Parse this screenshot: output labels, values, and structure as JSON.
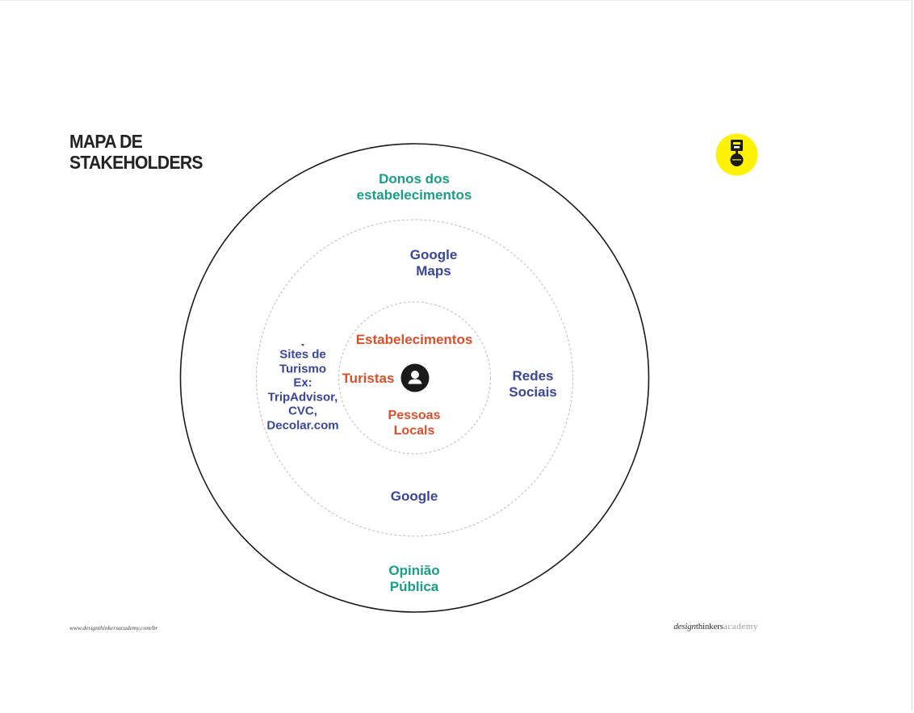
{
  "title": {
    "line1": "MAPA DE",
    "line2": "STAKEHOLDERS"
  },
  "colors": {
    "outer_ring_text": "#1a9e87",
    "middle_ring_text": "#3a4699",
    "inner_ring_text": "#d9502d",
    "logo_yellow": "#fff200"
  },
  "rings": {
    "outer": {
      "items": [
        {
          "lines": [
            "Donos dos",
            "estabelecimentos"
          ]
        },
        {
          "lines": [
            "Opinião",
            "Pública"
          ]
        }
      ]
    },
    "middle": {
      "items": [
        {
          "lines": [
            "Google",
            "Maps"
          ]
        },
        {
          "lines": [
            "Redes",
            "Sociais"
          ]
        },
        {
          "lines": [
            "Google"
          ]
        },
        {
          "lines": [
            "Sites de",
            "Turismo",
            "Ex:",
            "TripAdvisor,",
            "CVC,",
            "Decolar.com"
          ]
        }
      ]
    },
    "inner": {
      "items": [
        {
          "lines": [
            "Estabelecimentos"
          ]
        },
        {
          "lines": [
            "Turistas"
          ]
        },
        {
          "lines": [
            "Pessoas",
            "Locals"
          ]
        }
      ]
    },
    "center_icon": "user-icon"
  },
  "footer": {
    "url": "www.designthinkersacademy.com/br",
    "brand_part1": "design",
    "brand_part2": "thinkers",
    "brand_part3": "academy"
  },
  "logo_icon": "designthinkers-badge-icon"
}
